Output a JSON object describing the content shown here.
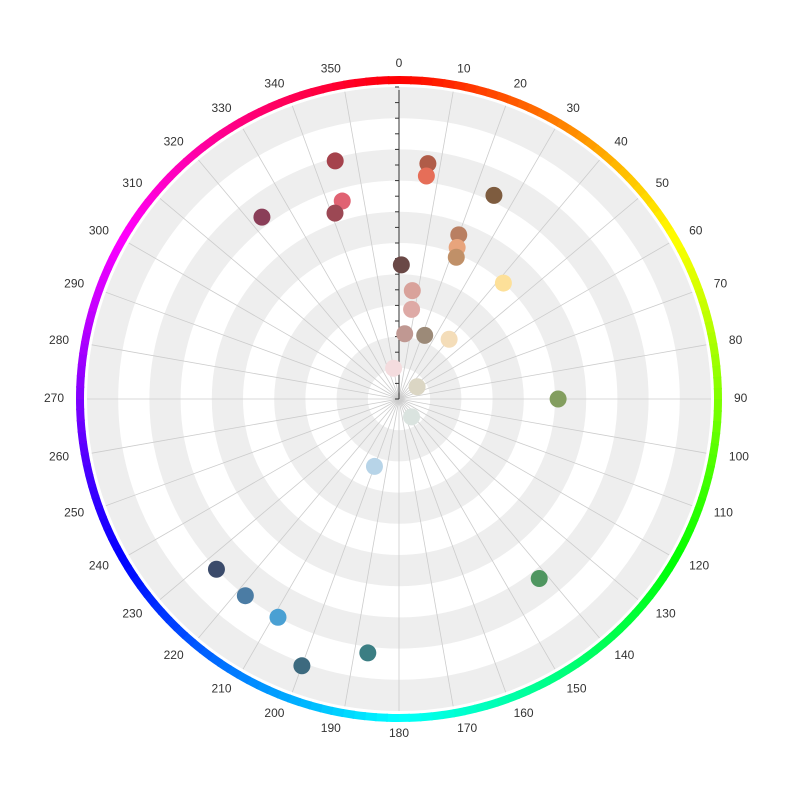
{
  "chart_data": {
    "type": "scatter",
    "coordinate_system": "polar",
    "title": "",
    "angle_axis": {
      "unit": "degrees",
      "range": [
        0,
        360
      ],
      "direction": "clockwise",
      "zero_at": "top",
      "tick_labels": [
        "0",
        "10",
        "20",
        "30",
        "40",
        "50",
        "60",
        "70",
        "80",
        "90",
        "100",
        "110",
        "120",
        "130",
        "140",
        "150",
        "160",
        "170",
        "180",
        "190",
        "200",
        "210",
        "220",
        "230",
        "240",
        "250",
        "260",
        "270",
        "280",
        "290",
        "300",
        "310",
        "320",
        "330",
        "340",
        "350"
      ]
    },
    "radius_axis": {
      "range": [
        0,
        100
      ],
      "tick_step": 10,
      "tick_labels_shown": false,
      "grid": "alternating bands"
    },
    "hue_ring": {
      "stops": [
        "#ff0000",
        "#ffff00",
        "#00ff00",
        "#00ffff",
        "#0000ff",
        "#ff00ff",
        "#ff0000"
      ]
    },
    "points": [
      {
        "angle": 7,
        "radius": 76,
        "color": "#b05c48"
      },
      {
        "angle": 7,
        "radius": 72,
        "color": "#e66e58"
      },
      {
        "angle": 25,
        "radius": 72,
        "color": "#7e5c3f"
      },
      {
        "angle": 20,
        "radius": 56,
        "color": "#b97f62"
      },
      {
        "angle": 21,
        "radius": 52,
        "color": "#e8a47c"
      },
      {
        "angle": 22,
        "radius": 49,
        "color": "#c09068"
      },
      {
        "angle": 42,
        "radius": 50,
        "color": "#fde099"
      },
      {
        "angle": 1,
        "radius": 43,
        "color": "#6a4846"
      },
      {
        "angle": 7,
        "radius": 35,
        "color": "#d9a29b"
      },
      {
        "angle": 8,
        "radius": 29,
        "color": "#deaaa6"
      },
      {
        "angle": 5,
        "radius": 21,
        "color": "#c09892"
      },
      {
        "angle": 22,
        "radius": 22,
        "color": "#9c8a78"
      },
      {
        "angle": 40,
        "radius": 25,
        "color": "#f4ddb9"
      },
      {
        "angle": 350,
        "radius": 10,
        "color": "#f4dcde"
      },
      {
        "angle": 56,
        "radius": 7,
        "color": "#dbd6c4"
      },
      {
        "angle": 145,
        "radius": 7,
        "color": "#dae3df"
      },
      {
        "angle": 90,
        "radius": 51,
        "color": "#839e5f"
      },
      {
        "angle": 142,
        "radius": 73,
        "color": "#4f9660"
      },
      {
        "angle": 200,
        "radius": 23,
        "color": "#b7d4e8"
      },
      {
        "angle": 187,
        "radius": 82,
        "color": "#3b7e83"
      },
      {
        "angle": 200,
        "radius": 91,
        "color": "#3d6a7f"
      },
      {
        "angle": 209,
        "radius": 80,
        "color": "#4aa0d3"
      },
      {
        "angle": 218,
        "radius": 80,
        "color": "#4b7ca4"
      },
      {
        "angle": 227,
        "radius": 80,
        "color": "#3b4b6b"
      },
      {
        "angle": 345,
        "radius": 79,
        "color": "#a5424c"
      },
      {
        "angle": 344,
        "radius": 66,
        "color": "#e06272"
      },
      {
        "angle": 341,
        "radius": 63,
        "color": "#9c4854"
      },
      {
        "angle": 323,
        "radius": 73,
        "color": "#8a3e58"
      }
    ]
  }
}
